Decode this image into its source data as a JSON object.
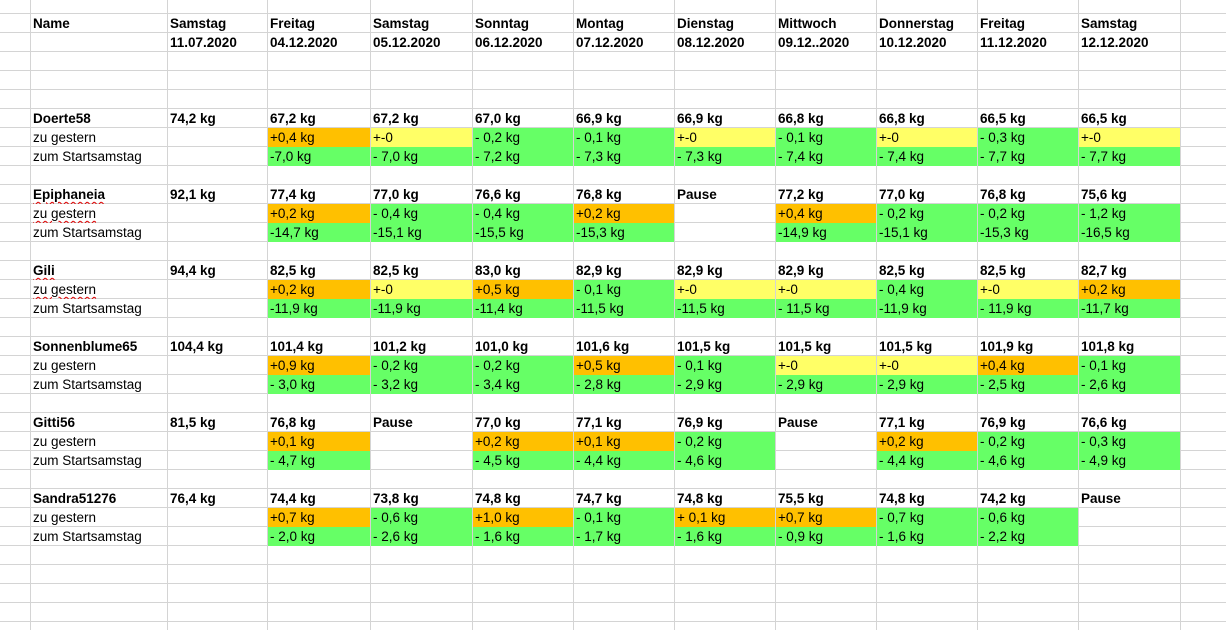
{
  "header": {
    "name_label": "Name",
    "columns": [
      {
        "day": "Samstag",
        "date": "11.07.2020"
      },
      {
        "day": "Freitag",
        "date": "04.12.2020"
      },
      {
        "day": "Samstag",
        "date": "05.12.2020"
      },
      {
        "day": "Sonntag",
        "date": "06.12.2020"
      },
      {
        "day": "Montag",
        "date": "07.12.2020"
      },
      {
        "day": "Dienstag",
        "date": "08.12.2020"
      },
      {
        "day": "Mittwoch",
        "date": "09.12..2020"
      },
      {
        "day": "Donnerstag",
        "date": "10.12.2020"
      },
      {
        "day": "Freitag",
        "date": "11.12.2020"
      },
      {
        "day": "Samstag",
        "date": "12.12.2020"
      }
    ]
  },
  "colors": {
    "orange": "#ffc000",
    "yellow": "#ffff66",
    "green": "#66ff66"
  },
  "people": [
    {
      "name": "Doerte58",
      "spell": false,
      "weights": [
        "74,2 kg",
        "67,2 kg",
        "67,2 kg",
        "67,0 kg",
        "66,9 kg",
        "66,9 kg",
        "66,8 kg",
        "66,8 kg",
        "66,5 kg",
        "66,5 kg"
      ],
      "diff_label": "zu gestern",
      "diff": [
        "+0,4 kg",
        "+-0",
        "- 0,2 kg",
        "- 0,1 kg",
        "+-0",
        "- 0,1 kg",
        "+-0",
        "- 0,3 kg",
        "+-0"
      ],
      "diff_c": [
        "o",
        "y",
        "g",
        "g",
        "y",
        "g",
        "y",
        "g",
        "y"
      ],
      "start_label": "zum Startsamstag",
      "start": [
        "-7,0 kg",
        "- 7,0 kg",
        "- 7,2 kg",
        "- 7,3 kg",
        "- 7,3 kg",
        "- 7,4 kg",
        "- 7,4 kg",
        "- 7,7 kg",
        "- 7,7 kg"
      ]
    },
    {
      "name": "Epiphaneia",
      "spell": true,
      "weights": [
        "92,1 kg",
        "77,4 kg",
        "77,0 kg",
        "76,6 kg",
        "76,8 kg",
        "Pause",
        "77,2 kg",
        "77,0 kg",
        "76,8 kg",
        "75,6 kg"
      ],
      "diff_label": "zu gestern",
      "diff": [
        "+0,2 kg",
        "- 0,4 kg",
        "- 0,4 kg",
        "+0,2 kg",
        "",
        "+0,4 kg",
        "- 0,2 kg",
        " - 0,2 kg",
        "- 1,2 kg"
      ],
      "diff_c": [
        "o",
        "g",
        "g",
        "o",
        "",
        "o",
        "g",
        "g",
        "g"
      ],
      "start_label": "zum Startsamstag",
      "start": [
        "-14,7 kg",
        "-15,1 kg",
        "-15,5 kg",
        "-15,3 kg",
        "",
        "-14,9 kg",
        "-15,1 kg",
        "-15,3 kg",
        "-16,5 kg"
      ]
    },
    {
      "name": "Gili",
      "spell": true,
      "weights": [
        "94,4 kg",
        "82,5 kg",
        "82,5 kg",
        "83,0 kg",
        "82,9 kg",
        "82,9 kg",
        "82,9 kg",
        "82,5 kg",
        "82,5 kg",
        "82,7 kg"
      ],
      "diff_label": "zu gestern",
      "diff": [
        "+0,2 kg",
        "+-0",
        "+0,5 kg",
        "- 0,1 kg",
        "+-0",
        "+-0",
        "- 0,4 kg",
        "+-0",
        "+0,2 kg"
      ],
      "diff_c": [
        "o",
        "y",
        "o",
        "g",
        "y",
        "y",
        "g",
        "y",
        "o"
      ],
      "start_label": "zum Startsamstag",
      "start": [
        "-11,9 kg",
        "-11,9 kg",
        "-11,4 kg",
        "-11,5 kg",
        "-11,5 kg",
        "- 11,5 kg",
        "-11,9 kg",
        "- 11,9 kg",
        "-11,7 kg"
      ]
    },
    {
      "name": "Sonnenblume65",
      "spell": false,
      "weights": [
        "104,4 kg",
        "101,4 kg",
        "101,2 kg",
        "101,0 kg",
        "101,6 kg",
        "101,5 kg",
        "101,5 kg",
        "101,5 kg",
        "101,9 kg",
        "101,8 kg"
      ],
      "diff_label": "zu gestern",
      "diff": [
        "+0,9 kg",
        "- 0,2 kg",
        "- 0,2 kg",
        "+0,5 kg",
        "- 0,1 kg",
        "+-0",
        "+-0",
        "+0,4 kg",
        "- 0,1 kg"
      ],
      "diff_c": [
        "o",
        "g",
        "g",
        "o",
        "g",
        "y",
        "y",
        "o",
        "g"
      ],
      "start_label": "zum Startsamstag",
      "start": [
        "- 3,0 kg",
        "- 3,2 kg",
        "- 3,4 kg",
        "- 2,8 kg",
        "- 2,9 kg",
        "- 2,9 kg",
        "- 2,9 kg",
        "- 2,5 kg",
        "- 2,6 kg"
      ]
    },
    {
      "name": "Gitti56",
      "spell": false,
      "weights": [
        "81,5 kg",
        "76,8 kg",
        "Pause",
        "77,0 kg",
        "77,1 kg",
        "76,9 kg",
        "Pause",
        "77,1 kg",
        "76,9 kg",
        "76,6 kg"
      ],
      "diff_label": "zu gestern",
      "diff": [
        "+0,1 kg",
        "",
        "+0,2 kg",
        "+0,1 kg",
        "- 0,2 kg",
        "",
        "+0,2 kg",
        "- 0,2 kg",
        "- 0,3 kg"
      ],
      "diff_c": [
        "o",
        "",
        "o",
        "o",
        "g",
        "",
        "o",
        "g",
        "g"
      ],
      "start_label": "zum Startsamstag",
      "start": [
        "- 4,7 kg",
        "",
        "- 4,5 kg",
        "- 4,4 kg",
        "- 4,6 kg",
        "",
        "- 4,4 kg",
        "- 4,6 kg",
        "- 4,9 kg"
      ]
    },
    {
      "name": "Sandra51276",
      "spell": false,
      "weights": [
        "76,4 kg",
        "74,4 kg",
        "73,8 kg",
        "74,8 kg",
        "74,7 kg",
        "74,8 kg",
        "75,5 kg",
        "74,8 kg",
        "74,2 kg",
        "Pause"
      ],
      "diff_label": "zu gestern",
      "diff": [
        "+0,7 kg",
        "- 0,6 kg",
        "+1,0 kg",
        "- 0,1 kg",
        "+ 0,1 kg",
        "+0,7 kg",
        "- 0,7 kg",
        "- 0,6 kg",
        ""
      ],
      "diff_c": [
        "o",
        "g",
        "o",
        "g",
        "o",
        "o",
        "g",
        "g",
        ""
      ],
      "start_label": "zum Startsamstag",
      "start": [
        "- 2,0 kg",
        "- 2,6 kg",
        "- 1,6 kg",
        "- 1,7 kg",
        "- 1,6 kg",
        "- 0,9 kg",
        "- 1,6 kg",
        "- 2,2 kg",
        ""
      ]
    }
  ]
}
